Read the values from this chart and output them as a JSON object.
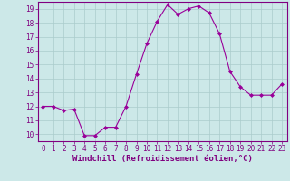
{
  "x": [
    0,
    1,
    2,
    3,
    4,
    5,
    6,
    7,
    8,
    9,
    10,
    11,
    12,
    13,
    14,
    15,
    16,
    17,
    18,
    19,
    20,
    21,
    22,
    23
  ],
  "y": [
    12.0,
    12.0,
    11.7,
    11.8,
    9.9,
    9.9,
    10.5,
    10.5,
    12.0,
    14.3,
    16.5,
    18.1,
    19.3,
    18.6,
    19.0,
    19.2,
    18.7,
    17.2,
    14.5,
    13.4,
    12.8,
    12.8,
    12.8,
    13.6
  ],
  "line_color": "#990099",
  "marker": "D",
  "marker_size": 2.0,
  "bg_color": "#cce8e8",
  "grid_color": "#aacccc",
  "xlabel": "Windchill (Refroidissement éolien,°C)",
  "ylabel": "",
  "xlim": [
    -0.5,
    23.5
  ],
  "ylim": [
    9.5,
    19.5
  ],
  "yticks": [
    10,
    11,
    12,
    13,
    14,
    15,
    16,
    17,
    18,
    19
  ],
  "xticks": [
    0,
    1,
    2,
    3,
    4,
    5,
    6,
    7,
    8,
    9,
    10,
    11,
    12,
    13,
    14,
    15,
    16,
    17,
    18,
    19,
    20,
    21,
    22,
    23
  ],
  "tick_fontsize": 5.5,
  "xlabel_fontsize": 6.5,
  "tick_color": "#800080",
  "axis_color": "#800080",
  "spine_color": "#800080"
}
